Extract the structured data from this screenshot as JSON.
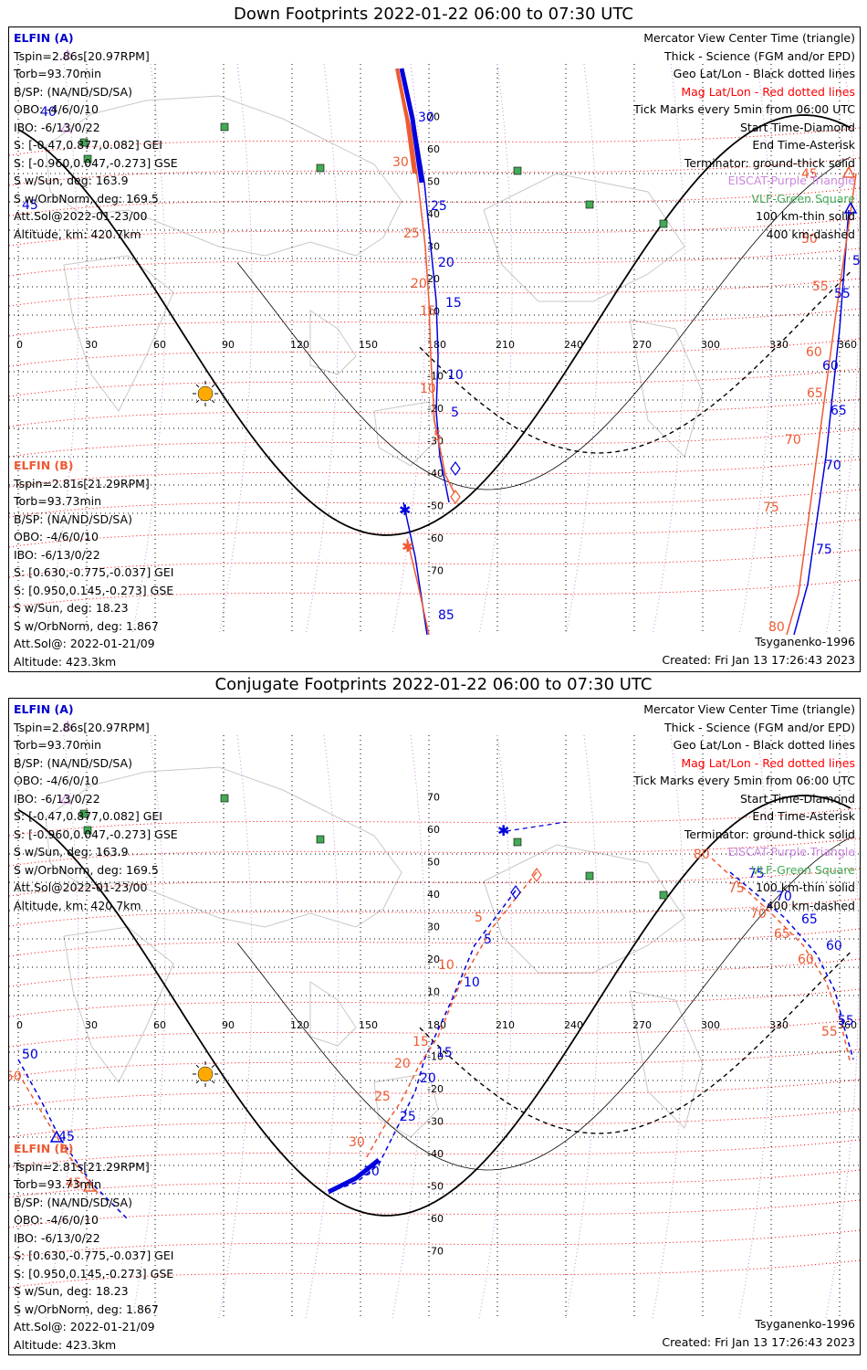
{
  "panels": [
    {
      "title": "Down Footprints 2022-01-22 06:00 to 07:30 UTC",
      "elfin_a": {
        "header": "ELFIN (A)",
        "lines": [
          "Tspin=2.86s[20.97RPM]",
          "Torb=93.70min",
          "B/SP: (NA/ND/SD/SA)",
          "OBO: -4/6/0/10",
          "IBO: -6/13/0/22",
          "S: [-0.47,0.877,0.082] GEI",
          "S: [-0.960,0.047,-0.273] GSE",
          "S w/Sun, deg: 163.9",
          "S w/OrbNorm, deg: 169.5",
          "Att.Sol@2022-01-23/00",
          "Altitude, km: 420.7km"
        ]
      },
      "elfin_b": {
        "header": "ELFIN (B)",
        "lines": [
          "Tspin=2.81s[21.29RPM]",
          "Torb=93.73min",
          "B/SP: (NA/ND/SD/SA)",
          "OBO: -4/6/0/10",
          "IBO: -6/13/0/22",
          "S: [0.630,-0.775,-0.037] GEI",
          "S: [0.950,0.145,-0.273] GSE",
          "S w/Sun, deg: 18.23",
          "S w/OrbNorm, deg: 1.867",
          "Att.Sol@: 2022-01-21/09",
          "Altitude: 423.3km"
        ]
      },
      "model": "Tsyganenko-1996",
      "created": "Created: Fri Jan 13 17:26:43 2023"
    },
    {
      "title": "Conjugate Footprints 2022-01-22 06:00 to 07:30 UTC",
      "elfin_a": {
        "header": "ELFIN (A)",
        "lines": [
          "Tspin=2.86s[20.97RPM]",
          "Torb=93.70min",
          "B/SP: (NA/ND/SD/SA)",
          "OBO: -4/6/0/10",
          "IBO: -6/13/0/22",
          "S: [-0.47,0.877,0.082] GEI",
          "S: [-0.960,0.047,-0.273] GSE",
          "S w/Sun, deg: 163.9",
          "S w/OrbNorm, deg: 169.5",
          "Att.Sol@2022-01-23/00",
          "Altitude, km: 420.7km"
        ]
      },
      "elfin_b": {
        "header": "ELFIN (B)",
        "lines": [
          "Tspin=2.81s[21.29RPM]",
          "Torb=93.73min",
          "B/SP: (NA/ND/SD/SA)",
          "OBO: -4/6/0/10",
          "IBO: -6/13/0/22",
          "S: [0.630,-0.775,-0.037] GEI",
          "S: [0.950,0.145,-0.273] GSE",
          "S w/Sun, deg: 18.23",
          "S w/OrbNorm, deg: 1.867",
          "Att.Sol@: 2022-01-21/09",
          "Altitude: 423.3km"
        ]
      },
      "model": "Tsyganenko-1996",
      "created": "Created: Fri Jan 13 17:26:43 2023"
    }
  ],
  "legend": [
    {
      "text": "Mercator View Center Time (triangle)",
      "color": "#000000"
    },
    {
      "text": "Thick - Science (FGM and/or EPD)",
      "color": "#000000"
    },
    {
      "text": "Geo Lat/Lon - Black dotted lines",
      "color": "#000000"
    },
    {
      "text": "Mag Lat/Lon - Red dotted lines",
      "color": "#ff0000"
    },
    {
      "text": "Tick Marks every 5min from 06:00 UTC",
      "color": "#000000"
    },
    {
      "text": "Start Time-Diamond",
      "color": "#000000"
    },
    {
      "text": "End Time-Asterisk",
      "color": "#000000"
    },
    {
      "text": "Terminator: ground-thick solid",
      "color": "#000000"
    },
    {
      "text": "EISCAT-Purple Triangle",
      "color": "#cc88dd"
    },
    {
      "text": "VLF-Green Square",
      "color": "#44aa55"
    },
    {
      "text": "100 km-thin solid",
      "color": "#000000"
    },
    {
      "text": "400 km-dashed",
      "color": "#000000"
    }
  ],
  "map": {
    "lon_ticks": [
      "0",
      "30",
      "60",
      "90",
      "120",
      "150",
      "180",
      "210",
      "240",
      "270",
      "300",
      "330",
      "360"
    ],
    "lat_labels": [
      "70",
      "60",
      "50",
      "40",
      "30",
      "20",
      "10",
      "-10",
      "-20",
      "-30",
      "-40",
      "-50",
      "-60",
      "-70"
    ],
    "colors": {
      "elfin_a": "#0000dd",
      "elfin_b": "#ee5a33",
      "geo_grid": "#000000",
      "mag_grid": "#ff0000",
      "eiscat": "#cc88dd",
      "vlf": "#44aa55",
      "sun": "#ffaa00"
    },
    "down_a_ticks": [
      "30",
      "25",
      "20",
      "15",
      "10",
      "5",
      "40",
      "45",
      "50",
      "55",
      "60",
      "65",
      "70",
      "75",
      "85"
    ],
    "down_b_ticks": [
      "30",
      "25",
      "20",
      "15",
      "10",
      "5",
      "45",
      "50",
      "55",
      "60",
      "65",
      "70",
      "75",
      "80"
    ],
    "conj_a_ticks": [
      "5",
      "10",
      "15",
      "20",
      "25",
      "30",
      "45",
      "50",
      "55",
      "60",
      "65",
      "70",
      "75"
    ],
    "conj_b_ticks": [
      "5",
      "10",
      "15",
      "20",
      "25",
      "30",
      "45",
      "50",
      "55",
      "60",
      "65",
      "70",
      "75",
      "80"
    ]
  }
}
